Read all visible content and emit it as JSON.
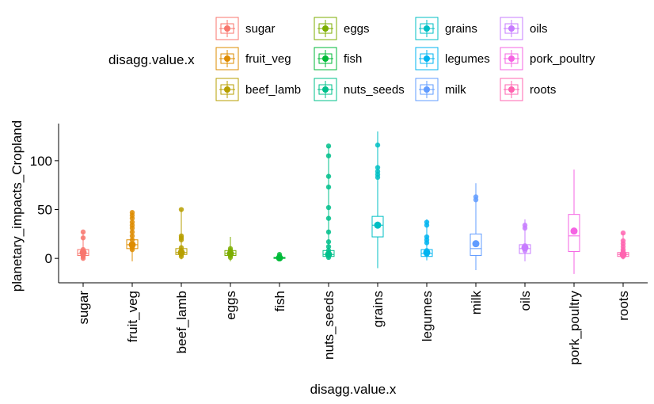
{
  "chart_data": {
    "type": "boxplot",
    "xlabel": "disagg.value.x",
    "ylabel": "planetary_impacts_Cropland",
    "ylim": [
      -25,
      138
    ],
    "yticks": [
      0,
      50,
      100
    ],
    "legend": {
      "title": "disagg.value.x",
      "position": "top",
      "columns": 4,
      "entries": [
        "sugar",
        "fruit_veg",
        "beef_lamb",
        "eggs",
        "fish",
        "nuts_seeds",
        "grains",
        "legumes",
        "milk",
        "oils",
        "pork_poultry",
        "roots"
      ]
    },
    "categories": [
      "sugar",
      "fruit_veg",
      "beef_lamb",
      "eggs",
      "fish",
      "nuts_seeds",
      "grains",
      "legumes",
      "milk",
      "oils",
      "pork_poultry",
      "roots"
    ],
    "colors": [
      "#F8766D",
      "#DE8C00",
      "#B79F00",
      "#7CAE00",
      "#00BA38",
      "#00C08B",
      "#00BFC4",
      "#00B4F0",
      "#619CFF",
      "#C77CFF",
      "#F564E3",
      "#FF64B0"
    ],
    "series": [
      {
        "category": "sugar",
        "min": -2,
        "q1": 3,
        "median": 5,
        "q3": 9,
        "max": 27,
        "mean": 6,
        "points": [
          27,
          21,
          9,
          7,
          5,
          4,
          3,
          2,
          0
        ]
      },
      {
        "category": "fruit_veg",
        "min": -3,
        "q1": 10,
        "median": 14,
        "q3": 19,
        "max": 48,
        "mean": 14,
        "points": [
          47,
          44,
          41,
          37,
          34,
          31,
          27,
          23,
          19,
          14,
          11,
          9
        ]
      },
      {
        "category": "beef_lamb",
        "min": -1,
        "q1": 4,
        "median": 6,
        "q3": 10,
        "max": 50,
        "mean": 6,
        "points": [
          50,
          23,
          21,
          19,
          11,
          8,
          6,
          4,
          2
        ]
      },
      {
        "category": "eggs",
        "min": -3,
        "q1": 3,
        "median": 5,
        "q3": 8,
        "max": 22,
        "mean": 5,
        "points": [
          10,
          8,
          5,
          3,
          1
        ]
      },
      {
        "category": "fish",
        "min": -1,
        "q1": 0,
        "median": 0.5,
        "q3": 1,
        "max": 5,
        "mean": 0.5,
        "points": [
          4,
          2,
          1,
          0
        ]
      },
      {
        "category": "nuts_seeds",
        "min": -1,
        "q1": 2,
        "median": 4,
        "q3": 8,
        "max": 115,
        "mean": 4,
        "points": [
          115,
          105,
          84,
          73,
          52,
          41,
          27,
          17,
          12,
          8,
          5,
          3,
          1
        ]
      },
      {
        "category": "grains",
        "min": -10,
        "q1": 22,
        "median": 34,
        "q3": 43,
        "max": 130,
        "mean": 34,
        "points": [
          116,
          93,
          89,
          86,
          83,
          35
        ]
      },
      {
        "category": "legumes",
        "min": -2,
        "q1": 2,
        "median": 5,
        "q3": 9,
        "max": 40,
        "mean": 6,
        "points": [
          37,
          34,
          22,
          19,
          16,
          8,
          6,
          4
        ]
      },
      {
        "category": "milk",
        "min": -12,
        "q1": 3,
        "median": 10,
        "q3": 25,
        "max": 77,
        "mean": 15,
        "points": [
          63,
          60,
          15
        ]
      },
      {
        "category": "oils",
        "min": -3,
        "q1": 5,
        "median": 10,
        "q3": 14,
        "max": 40,
        "mean": 11,
        "points": [
          34,
          31,
          13,
          11,
          8
        ]
      },
      {
        "category": "pork_poultry",
        "min": -16,
        "q1": 7,
        "median": 23,
        "q3": 45,
        "max": 91,
        "mean": 28,
        "points": [
          28
        ]
      },
      {
        "category": "roots",
        "min": -1,
        "q1": 2,
        "median": 4,
        "q3": 6,
        "max": 26,
        "mean": 4,
        "points": [
          26,
          18,
          15,
          12,
          9,
          7,
          5,
          3,
          2
        ]
      }
    ]
  }
}
